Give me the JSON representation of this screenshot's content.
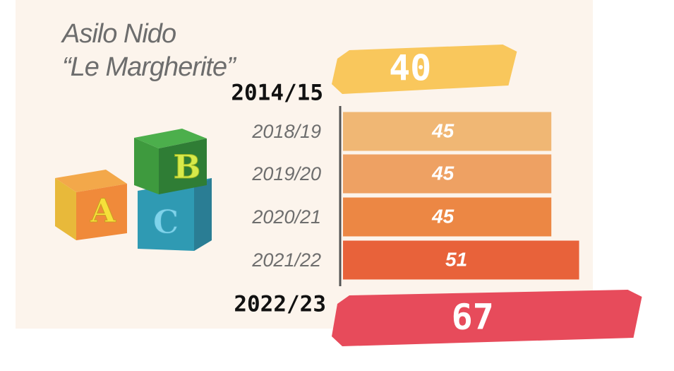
{
  "chart_data": {
    "type": "bar",
    "orientation": "horizontal",
    "title": "Asilo Nido",
    "subtitle": "“Le Margherite”",
    "categories": [
      "2014/15",
      "2018/19",
      "2019/20",
      "2020/21",
      "2021/22",
      "2022/23"
    ],
    "values": [
      40,
      45,
      45,
      45,
      51,
      67
    ],
    "colors": [
      "#f9c75c",
      "#f0b774",
      "#eea163",
      "#ec8744",
      "#e8623a",
      "#e74b5b"
    ]
  },
  "blocks": [
    "A",
    "B",
    "C"
  ]
}
